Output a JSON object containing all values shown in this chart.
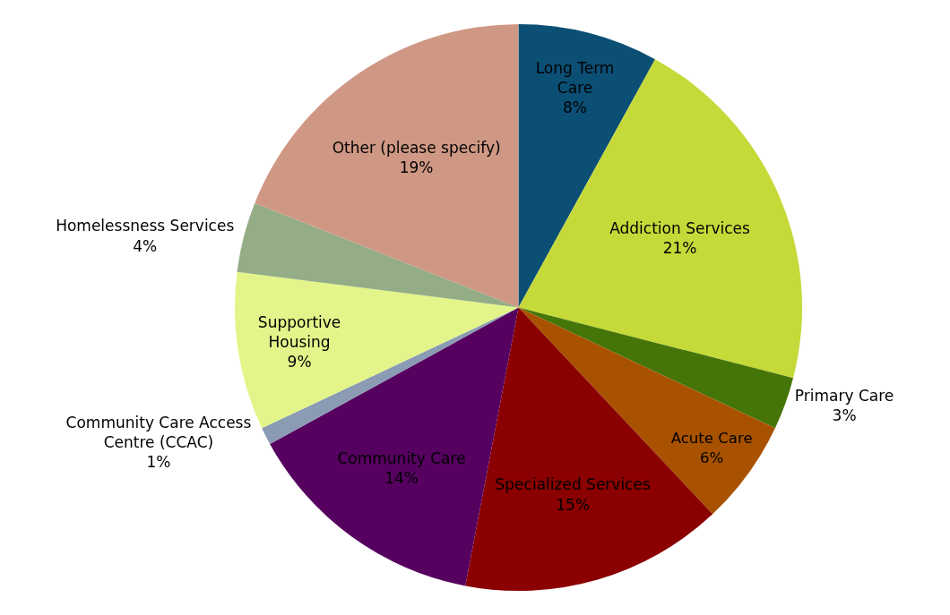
{
  "chart_data": {
    "type": "pie",
    "categories": [
      "Long Term Care",
      "Addiction Services",
      "Primary Care",
      "Acute Care",
      "Specialized Services",
      "Community Care",
      "Community Care Access Centre (CCAC)",
      "Supportive Housing",
      "Homelessness Services",
      "Other (please specify)"
    ],
    "values": [
      8,
      21,
      3,
      6,
      15,
      14,
      1,
      9,
      4,
      19
    ],
    "value_labels": [
      "8%",
      "21%",
      "3%",
      "6%",
      "15%",
      "14%",
      "1%",
      "9%",
      "4%",
      "19%"
    ],
    "colors": [
      "#0b4f75",
      "#c5d939",
      "#457508",
      "#a85200",
      "#8b0000",
      "#560060",
      "#8a9bb3",
      "#e3f58a",
      "#94ad86",
      "#cf9884"
    ],
    "legend": false
  }
}
